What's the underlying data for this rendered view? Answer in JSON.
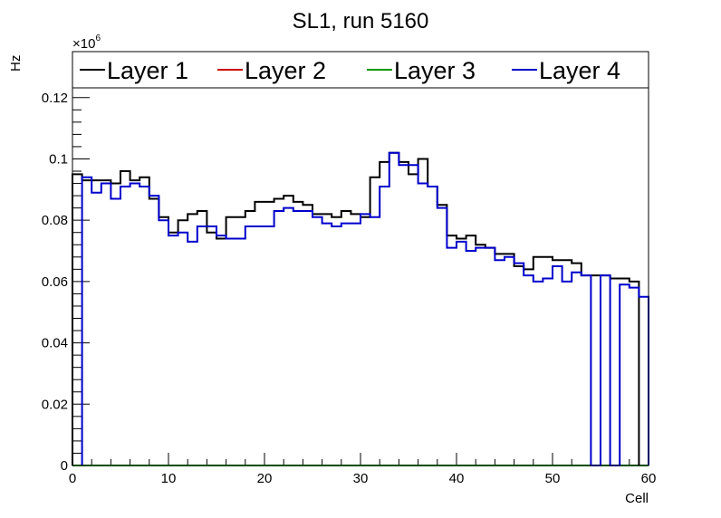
{
  "chart_data": {
    "type": "line",
    "title": "SL1, run 5160",
    "xlabel": "Cell",
    "ylabel": "Hz",
    "multiplier_label": "×10",
    "multiplier_exponent": "6",
    "xlim": [
      0,
      60
    ],
    "ylim": [
      0,
      0.135
    ],
    "x_ticks": [
      0,
      10,
      20,
      30,
      40,
      50,
      60
    ],
    "y_ticks": [
      0,
      0.02,
      0.04,
      0.06,
      0.08,
      0.1,
      0.12
    ],
    "x_tick_labels": [
      "0",
      "10",
      "20",
      "30",
      "40",
      "50",
      "60"
    ],
    "y_tick_labels": [
      "0",
      "0.02",
      "0.04",
      "0.06",
      "0.08",
      "0.1",
      "0.12"
    ],
    "grid": false,
    "legend_position": "top",
    "series": [
      {
        "name": "Layer 1",
        "color": "#000000",
        "bin_edges": [
          0,
          1,
          2,
          3,
          4,
          5,
          6,
          7,
          8,
          9,
          10,
          11,
          12,
          13,
          14,
          15,
          16,
          17,
          18,
          19,
          20,
          21,
          22,
          23,
          24,
          25,
          26,
          27,
          28,
          29,
          30,
          31,
          32,
          33,
          34,
          35,
          36,
          37,
          38,
          39,
          40,
          41,
          42,
          43,
          44,
          45,
          46,
          47,
          48,
          49,
          50,
          51,
          52,
          53,
          54,
          55,
          56,
          57,
          58,
          59
        ],
        "values": [
          0.095,
          0.093,
          0.093,
          0.093,
          0.092,
          0.096,
          0.093,
          0.094,
          0.087,
          0.081,
          0.076,
          0.08,
          0.082,
          0.083,
          0.076,
          0.074,
          0.081,
          0.081,
          0.083,
          0.086,
          0.086,
          0.087,
          0.088,
          0.086,
          0.085,
          0.082,
          0.082,
          0.081,
          0.083,
          0.082,
          0.081,
          0.094,
          0.099,
          0.102,
          0.099,
          0.095,
          0.1,
          0.091,
          0.085,
          0.075,
          0.074,
          0.075,
          0.072,
          0.071,
          0.069,
          0.069,
          0.065,
          0.064,
          0.068,
          0.068,
          0.067,
          0.067,
          0.066,
          0.062,
          0.062,
          0.062,
          0.061,
          0.061,
          0.06
        ]
      },
      {
        "name": "Layer 2",
        "color": "#cc0000",
        "bin_edges": [
          0,
          60
        ],
        "values": [
          0
        ]
      },
      {
        "name": "Layer 3",
        "color": "#009900",
        "bin_edges": [
          0,
          60
        ],
        "values": [
          0
        ]
      },
      {
        "name": "Layer 4",
        "color": "#0000cc",
        "bin_edges": [
          1,
          2,
          3,
          4,
          5,
          6,
          7,
          8,
          9,
          10,
          11,
          12,
          13,
          14,
          15,
          16,
          17,
          18,
          19,
          20,
          21,
          22,
          23,
          24,
          25,
          26,
          27,
          28,
          29,
          30,
          31,
          32,
          33,
          34,
          35,
          36,
          37,
          38,
          39,
          40,
          41,
          42,
          43,
          44,
          45,
          46,
          47,
          48,
          49,
          50,
          51,
          52,
          53,
          54,
          55,
          56,
          57,
          58,
          59
        ],
        "values": [
          0.094,
          0.089,
          0.092,
          0.087,
          0.091,
          0.092,
          0.091,
          0.088,
          0.08,
          0.075,
          0.076,
          0.073,
          0.078,
          0.078,
          0.075,
          0.074,
          0.074,
          0.078,
          0.078,
          0.078,
          0.083,
          0.084,
          0.083,
          0.083,
          0.081,
          0.079,
          0.078,
          0.079,
          0.079,
          0.082,
          0.081,
          0.091,
          0.102,
          0.098,
          0.098,
          0.092,
          0.091,
          0.084,
          0.071,
          0.073,
          0.07,
          0.071,
          0.071,
          0.067,
          0.068,
          0.066,
          0.062,
          0.06,
          0.061,
          0.065,
          0.06,
          0.063,
          0.062,
          0,
          0.062,
          0,
          0.059,
          0.058,
          0.055
        ]
      }
    ]
  }
}
